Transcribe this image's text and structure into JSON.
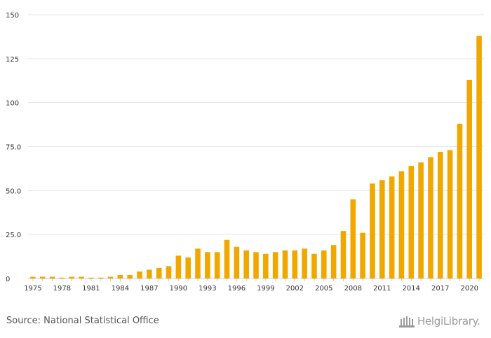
{
  "chart_data": {
    "type": "bar",
    "title": "",
    "xlabel": "",
    "ylabel": "",
    "ylim": [
      0,
      150
    ],
    "y_ticks": [
      0,
      25,
      50,
      75,
      100,
      125,
      150
    ],
    "y_tick_labels": [
      "0",
      "25.0",
      "50.0",
      "75.0",
      "100",
      "125",
      "150"
    ],
    "x_tick_labels": [
      "1975",
      "1978",
      "1981",
      "1984",
      "1987",
      "1990",
      "1993",
      "1996",
      "1999",
      "2002",
      "2005",
      "2008",
      "2011",
      "2014",
      "2017",
      "2020"
    ],
    "categories": [
      "1975",
      "1976",
      "1977",
      "1978",
      "1979",
      "1980",
      "1981",
      "1982",
      "1983",
      "1984",
      "1985",
      "1986",
      "1987",
      "1988",
      "1989",
      "1990",
      "1991",
      "1992",
      "1993",
      "1994",
      "1995",
      "1996",
      "1997",
      "1998",
      "1999",
      "2000",
      "2001",
      "2002",
      "2003",
      "2004",
      "2005",
      "2006",
      "2007",
      "2008",
      "2009",
      "2010",
      "2011",
      "2012",
      "2013",
      "2014",
      "2015",
      "2016",
      "2017",
      "2018",
      "2019",
      "2020",
      "2021"
    ],
    "values": [
      1,
      1,
      1,
      0.5,
      1,
      1,
      0.5,
      0.5,
      1,
      2,
      2,
      4,
      5,
      6,
      7,
      13,
      12,
      17,
      15,
      15,
      22,
      18,
      16,
      15,
      14,
      15,
      16,
      16,
      17,
      14,
      16,
      19,
      27,
      45,
      26,
      54,
      56,
      58,
      61,
      64,
      66,
      69,
      72,
      73,
      88,
      113,
      138
    ],
    "bar_color": "#f0a800",
    "grid": true
  },
  "footer": {
    "source": "Source: National Statistical Office",
    "logo_text": "HelgiLibrary."
  }
}
